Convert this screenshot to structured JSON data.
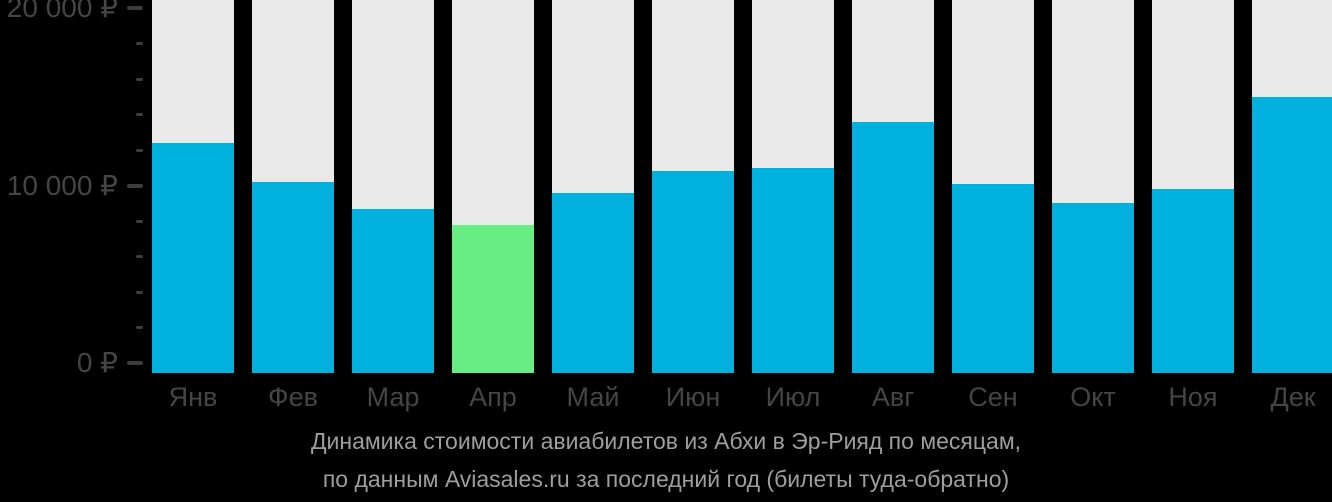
{
  "chart_data": {
    "type": "bar",
    "title": "Динамика стоимости авиабилетов из Абхи в Эр-Рияд по месяцам,",
    "subtitle": "по данным Aviasales.ru за последний год (билеты туда-обратно)",
    "categories": [
      "Янв",
      "Фев",
      "Мар",
      "Апр",
      "Май",
      "Июн",
      "Июл",
      "Авг",
      "Сен",
      "Окт",
      "Ноя",
      "Дек"
    ],
    "values": [
      12400,
      10200,
      8700,
      7800,
      9600,
      10800,
      11000,
      13600,
      10100,
      9000,
      9800,
      15000
    ],
    "highlight_index": 3,
    "highlight_meaning": "cheapest-month",
    "currency": "₽",
    "ylim": [
      0,
      20000
    ],
    "yticks": [
      {
        "value": 0,
        "label": "0 ₽"
      },
      {
        "value": 10000,
        "label": "10 000 ₽"
      },
      {
        "value": 20000,
        "label": "20 000 ₽"
      }
    ],
    "minor_tick_step": 2000,
    "grid": false,
    "legend": false,
    "colors": {
      "bar": "#00b0dd",
      "highlight": "#68ec84",
      "column_background": "#e9e9e9",
      "axis_text": "#454545",
      "axis_tick": "#3d3d3d",
      "caption_text": "#9e9e9e",
      "background": "#000000"
    }
  }
}
